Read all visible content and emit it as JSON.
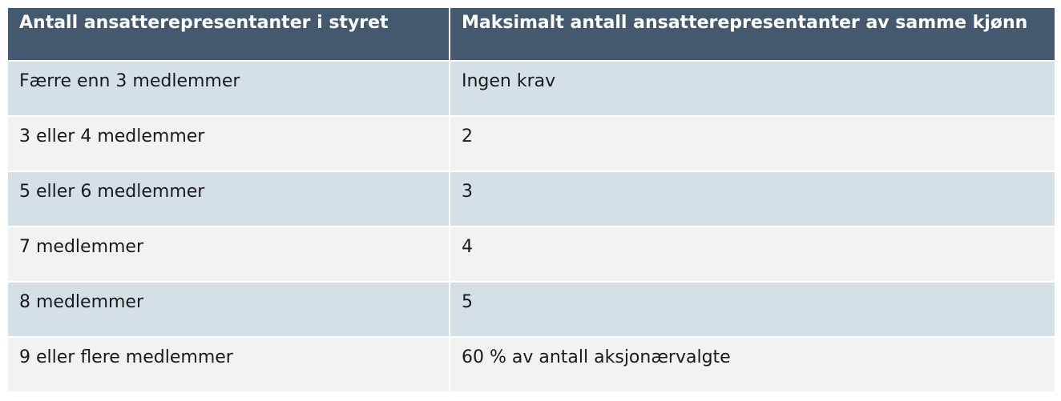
{
  "table": {
    "header": [
      "Antall ansatterepresentanter i styret",
      "Maksimalt antall ansatterepresentanter av samme kjønn"
    ],
    "rows": [
      [
        "Færre enn 3 medlemmer",
        "Ingen krav"
      ],
      [
        "3 eller 4 medlemmer",
        "2"
      ],
      [
        "5 eller 6 medlemmer",
        "3"
      ],
      [
        "7 medlemmer",
        "4"
      ],
      [
        "8 medlemmer",
        "5"
      ],
      [
        "9 eller flere medlemmer",
        "60 % av antall aksjonærvalgte"
      ]
    ]
  }
}
